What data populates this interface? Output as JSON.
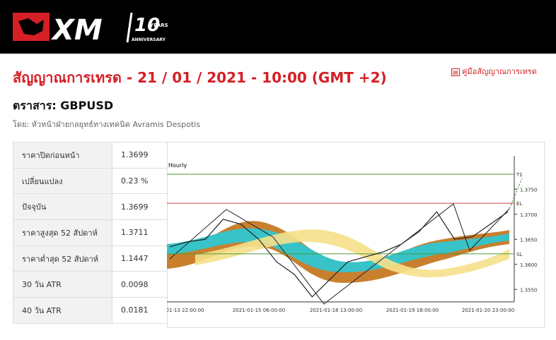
{
  "header": {
    "logo": "XM",
    "badge_number": "10",
    "badge_years": "YEARS",
    "badge_sub": "ANNIVERSARY"
  },
  "title": "สัญญาณการเทรด - 21 / 01 / 2021 - 10:00 (GMT +2)",
  "guide_link": "คู่มือสัญญาณการเทรด",
  "instrument": "ตราสาร: GBPUSD",
  "author": "โดย: หัวหน้าฝ่ายกลยุทธ์ทางเทคนิค Avramis Despotis",
  "table": {
    "rows": [
      [
        "ราคาปิดก่อนหน้า",
        "1.3699"
      ],
      [
        "เปลี่ยนแปลง",
        "0.23 %"
      ],
      [
        "ปัจจุบัน",
        "1.3699"
      ],
      [
        "ราคาสูงสุด 52 สัปดาห์",
        "1.3711"
      ],
      [
        "ราคาต่ำสุด 52 สัปดาห์",
        "1.1447"
      ],
      [
        "30 วัน ATR",
        "0.0098"
      ],
      [
        "40 วัน ATR",
        "0.0181"
      ]
    ]
  },
  "chart": {
    "timeframe": "Hourly",
    "ylim": [
      1.3525,
      1.3825
    ],
    "yticks": [
      {
        "value": 1.375,
        "label": "1.3750"
      },
      {
        "value": 1.37,
        "label": "1.3700"
      },
      {
        "value": 1.365,
        "label": "1.3650"
      },
      {
        "value": 1.36,
        "label": "1.3600"
      },
      {
        "value": 1.355,
        "label": "1.3550"
      }
    ],
    "xticks": [
      "1-01-13 22:00:00",
      "2021-01-15 06:00:00",
      "2021-01-18 13:00:00",
      "2021-01-19 18:00:00",
      "2021-01-20 23:00:00"
    ],
    "levels": [
      {
        "name": "T1",
        "value": 1.378,
        "color": "#4a9a3a"
      },
      {
        "name": "EL",
        "value": 1.3722,
        "color": "#d04040"
      },
      {
        "name": "SL",
        "value": 1.3621,
        "color": "#4a9a3a"
      }
    ],
    "prices": [
      1.3635,
      1.3645,
      1.365,
      1.369,
      1.368,
      1.365,
      1.3605,
      1.358,
      1.3535,
      1.357,
      1.3605,
      1.3615,
      1.3625,
      1.364,
      1.3665,
      1.3705,
      1.365,
      1.3655,
      1.368,
      1.3705
    ],
    "price_color": "#222222"
  }
}
